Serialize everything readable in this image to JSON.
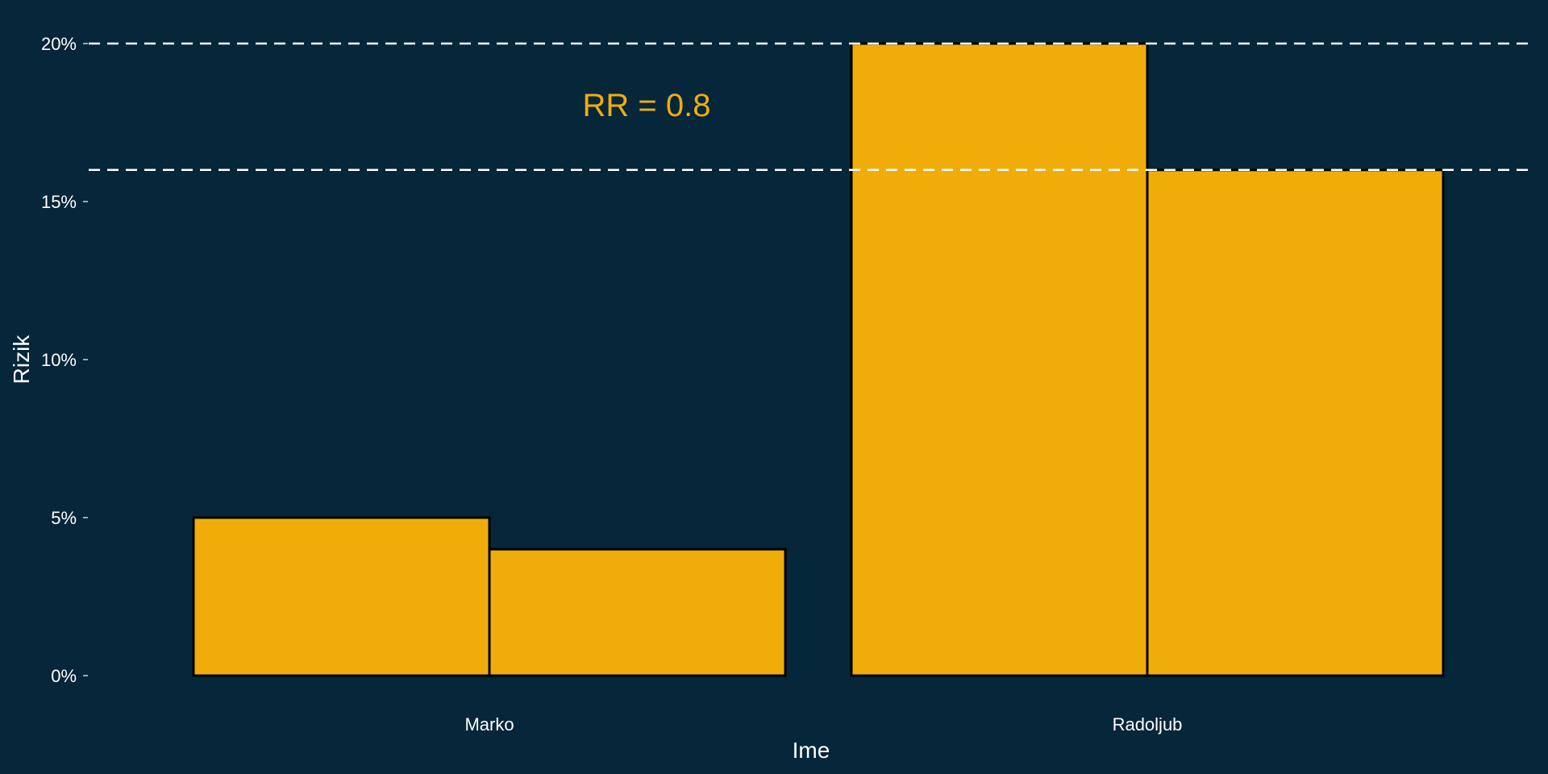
{
  "chart_data": {
    "type": "bar",
    "categories": [
      "Marko",
      "Radoljub"
    ],
    "series": [
      {
        "values": [
          5,
          20
        ]
      },
      {
        "values": [
          4,
          16
        ]
      }
    ],
    "xlabel": "Ime",
    "ylabel": "Rizik",
    "ylim": [
      0,
      20
    ],
    "yticks": [
      0,
      5,
      10,
      15,
      20
    ],
    "ytick_labels": [
      "0%",
      "5%",
      "10%",
      "15%",
      "20%"
    ],
    "reference_lines": [
      20,
      16
    ],
    "annotation": {
      "text": "RR = 0.8"
    },
    "grid": false,
    "legend": "none",
    "colors": {
      "background": "#06263a",
      "bar_fill": "#f0ad0a",
      "bar_outline": "#000000",
      "reference_line": "#ffffff",
      "annotation": "#f0ad0a",
      "text": "#ffffff"
    }
  }
}
